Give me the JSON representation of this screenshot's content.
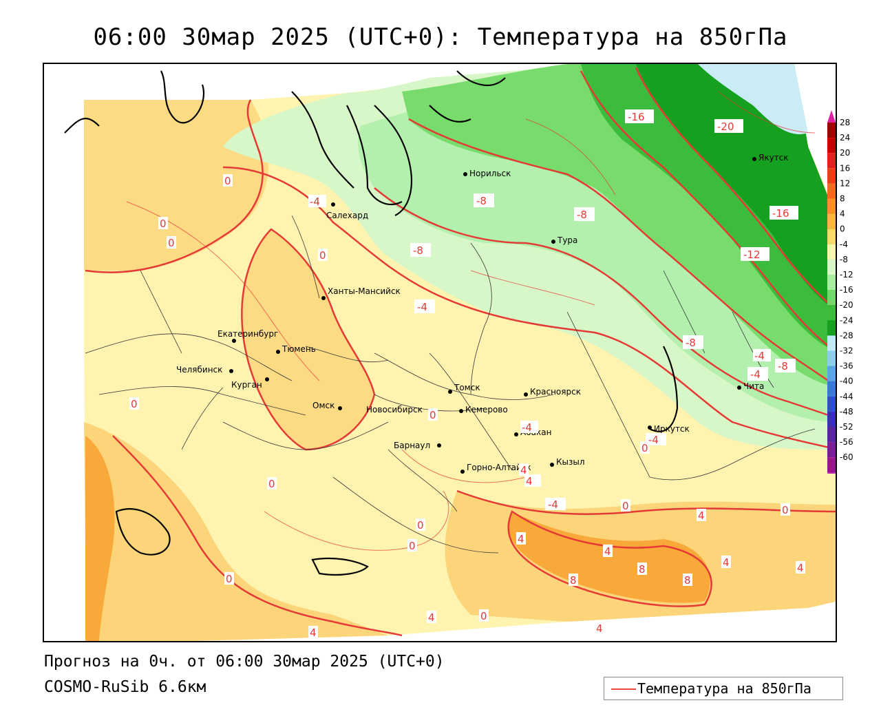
{
  "title": "06:00 30мар 2025 (UTC+0): Температура на 850гПа",
  "footer": {
    "forecast": "Прогноз на 0ч. от 06:00 30мар 2025 (UTC+0)",
    "model": "COSMO-RuSib 6.6км"
  },
  "legend": {
    "label": "Температура на 850гПа",
    "line_color": "#e8453c"
  },
  "colors": {
    "t_minus_24_20": "#c9ecf5",
    "t_minus_20_16": "#15a01f",
    "t_minus_16_12": "#3cbc3c",
    "t_minus_12_8": "#77dc6c",
    "t_minus_8_4": "#b3f0ae",
    "t_minus_4_0": "#d8f7c8",
    "t_0_4": "#fff3b0",
    "t_4_8": "#fcd57a",
    "t_8_12": "#f9a93a",
    "t_12_16": "#f57b27",
    "isoline": "#e53935",
    "border": "#000000"
  },
  "scale": {
    "ticks": [
      "28",
      "24",
      "20",
      "16",
      "12",
      "8",
      "4",
      "0",
      "-4",
      "-8",
      "-12",
      "-16",
      "-20",
      "-24",
      "-28",
      "-32",
      "-36",
      "-40",
      "-44",
      "-48",
      "-52",
      "-56",
      "-60"
    ],
    "colors": [
      "#a00000",
      "#c80000",
      "#e32020",
      "#f03c14",
      "#f56a1e",
      "#f88f2c",
      "#fbb544",
      "#fdd96c",
      "#fff5b0",
      "#d9f7c8",
      "#a8eea0",
      "#72d96a",
      "#3cbc3c",
      "#15a01f",
      "#c0eaf5",
      "#8dcdf0",
      "#5aa5eb",
      "#3a78dc",
      "#2e4fcc",
      "#3a2fb8",
      "#5a23a8",
      "#7a1c9c",
      "#9a1494"
    ],
    "top_color": "#e020a0",
    "bottom_color": "#c020c0"
  },
  "cities": [
    {
      "name": "Норильск"
    },
    {
      "name": "Салехард"
    },
    {
      "name": "Тура"
    },
    {
      "name": "Якутск"
    },
    {
      "name": "Ханты-Мансийск"
    },
    {
      "name": "Екатеринбург"
    },
    {
      "name": "Тюмень"
    },
    {
      "name": "Челябинск"
    },
    {
      "name": "Курган"
    },
    {
      "name": "Омск"
    },
    {
      "name": "Новосибирск"
    },
    {
      "name": "Томск"
    },
    {
      "name": "Кемерово"
    },
    {
      "name": "Красноярск"
    },
    {
      "name": "Барнаул"
    },
    {
      "name": "Абакан"
    },
    {
      "name": "Иркутск"
    },
    {
      "name": "Чита"
    },
    {
      "name": "Горно-Алтайск"
    },
    {
      "name": "Кызыл"
    }
  ],
  "isolabels": [
    {
      "text": "-16"
    },
    {
      "text": "-20"
    },
    {
      "text": "-16"
    },
    {
      "text": "-12"
    },
    {
      "text": "-8"
    },
    {
      "text": "-8"
    },
    {
      "text": "-8"
    },
    {
      "text": "-4"
    },
    {
      "text": "-4"
    },
    {
      "text": "-8"
    },
    {
      "text": "-8"
    },
    {
      "text": "0"
    },
    {
      "text": "0"
    },
    {
      "text": "0"
    },
    {
      "text": "0"
    },
    {
      "text": "-4"
    },
    {
      "text": "0"
    },
    {
      "text": "0"
    },
    {
      "text": "0"
    },
    {
      "text": "0"
    },
    {
      "text": "4"
    },
    {
      "text": "-4"
    },
    {
      "text": "0"
    },
    {
      "text": "4"
    },
    {
      "text": "4"
    },
    {
      "text": "8"
    },
    {
      "text": "8"
    },
    {
      "text": "8"
    },
    {
      "text": "4"
    },
    {
      "text": "4"
    },
    {
      "text": "0"
    },
    {
      "text": "4"
    },
    {
      "text": "4"
    },
    {
      "text": "4"
    },
    {
      "text": "0"
    },
    {
      "text": "0"
    },
    {
      "text": "-4"
    },
    {
      "text": "4"
    },
    {
      "text": "0"
    },
    {
      "text": "-4"
    },
    {
      "text": "0"
    },
    {
      "text": "4"
    },
    {
      "text": "-4"
    }
  ]
}
